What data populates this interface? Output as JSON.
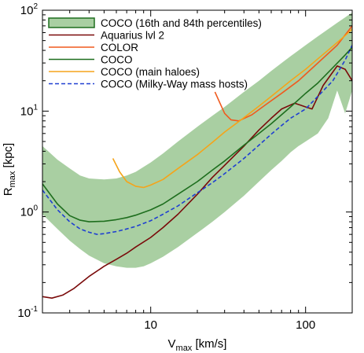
{
  "chart_data": {
    "type": "line",
    "xlabel": "V",
    "xlabel_sub": "max",
    "xlabel_unit": " [km/s]",
    "ylabel": "R",
    "ylabel_sub": "max",
    "ylabel_unit": " [kpc]",
    "x_scale": "log",
    "y_scale": "log",
    "xlim": [
      2,
      200
    ],
    "ylim": [
      0.1,
      100
    ],
    "x_tick_labels": [
      {
        "value": 10,
        "label": "10"
      },
      {
        "value": 100,
        "label": "100"
      }
    ],
    "y_tick_labels": [
      {
        "value": 0.1,
        "label": "10",
        "exp": "-1"
      },
      {
        "value": 1,
        "label": "10",
        "exp": "0"
      },
      {
        "value": 10,
        "label": "10",
        "exp": "1"
      },
      {
        "value": 100,
        "label": "10",
        "exp": "2"
      }
    ],
    "grid": false,
    "legend_position": "top-left",
    "band": {
      "name": "COCO (16th and 84th percentiles)",
      "color": "#a9cfa2",
      "edge_color": "#1e6e1e",
      "x": [
        2,
        2.5,
        3,
        3.5,
        4,
        5,
        6,
        7,
        8,
        9,
        10,
        12,
        15,
        20,
        25,
        30,
        40,
        50,
        60,
        70,
        80,
        90,
        100,
        120,
        140,
        160,
        180,
        200
      ],
      "upper": [
        4.5,
        3.3,
        2.7,
        2.3,
        2.15,
        2.1,
        2.15,
        2.3,
        2.5,
        2.8,
        3.1,
        3.8,
        5.0,
        7.0,
        9.0,
        11.0,
        15.5,
        20,
        25,
        30,
        35,
        40,
        45,
        55,
        65,
        75,
        85,
        95
      ],
      "lower": [
        0.95,
        0.68,
        0.52,
        0.43,
        0.37,
        0.31,
        0.29,
        0.28,
        0.28,
        0.29,
        0.31,
        0.36,
        0.45,
        0.62,
        0.8,
        1.0,
        1.45,
        2.0,
        2.6,
        3.2,
        3.9,
        4.5,
        5.0,
        6.0,
        8.5,
        16,
        9.5,
        16
      ]
    },
    "series": [
      {
        "name": "Aquarius lvl 2",
        "color": "#7a0a0a",
        "dash": "solid",
        "x": [
          2,
          2.3,
          2.7,
          3.2,
          4,
          5,
          6,
          7,
          8,
          10,
          12,
          15,
          20,
          25,
          30,
          40,
          50,
          60,
          70,
          85,
          100,
          110,
          130,
          160,
          180,
          200
        ],
        "y": [
          0.145,
          0.14,
          0.15,
          0.175,
          0.23,
          0.29,
          0.34,
          0.39,
          0.45,
          0.56,
          0.7,
          0.95,
          1.5,
          2.2,
          2.9,
          4.5,
          6.5,
          8.5,
          10.5,
          12,
          11,
          10.5,
          18,
          28,
          26,
          20
        ]
      },
      {
        "name": "COLOR",
        "color": "#f05a1e",
        "dash": "solid",
        "x": [
          26,
          28,
          30,
          33,
          37,
          45,
          55,
          70,
          90,
          120,
          160,
          200
        ],
        "y": [
          15.5,
          12,
          9.5,
          8.2,
          8.0,
          9.2,
          11.5,
          15,
          20,
          30,
          45,
          70
        ]
      },
      {
        "name": "COCO",
        "color": "#1e6e1e",
        "dash": "solid",
        "x": [
          2,
          2.5,
          3,
          3.5,
          4,
          5,
          6,
          7,
          8,
          10,
          12,
          15,
          20,
          25,
          30,
          40,
          50,
          60,
          80,
          100,
          120,
          150,
          180,
          200
        ],
        "y": [
          1.9,
          1.2,
          0.92,
          0.83,
          0.8,
          0.81,
          0.84,
          0.88,
          0.93,
          1.05,
          1.2,
          1.5,
          2.0,
          2.6,
          3.2,
          4.6,
          6.0,
          7.5,
          11,
          15,
          19,
          27,
          36,
          43
        ]
      },
      {
        "name": "COCO (main haloes)",
        "color": "#f5a41a",
        "dash": "solid",
        "x": [
          5.7,
          6.3,
          7,
          8,
          9,
          10,
          12,
          15,
          20,
          25,
          30,
          40,
          50,
          60,
          80,
          100,
          120,
          150,
          180,
          200
        ],
        "y": [
          3.4,
          2.5,
          2.0,
          1.8,
          1.75,
          1.85,
          2.1,
          2.7,
          3.7,
          4.9,
          6.2,
          8.6,
          11.2,
          14,
          20,
          26,
          33,
          44,
          56,
          65
        ]
      },
      {
        "name": "COCO (Milky-Way mass hosts)",
        "color": "#1f3fd1",
        "dash": "dashed",
        "x": [
          2,
          2.5,
          3,
          3.5,
          4,
          4.5,
          5,
          6,
          7,
          8,
          10,
          12,
          15,
          20,
          25,
          30,
          40,
          50,
          60,
          70,
          80,
          90,
          100,
          120,
          150,
          180,
          200
        ],
        "y": [
          1.65,
          1.05,
          0.8,
          0.68,
          0.63,
          0.6,
          0.61,
          0.64,
          0.68,
          0.72,
          0.82,
          0.95,
          1.15,
          1.55,
          1.95,
          2.4,
          3.4,
          4.6,
          5.9,
          7.2,
          8.5,
          9.5,
          10.5,
          14,
          20,
          32,
          45
        ]
      }
    ]
  }
}
